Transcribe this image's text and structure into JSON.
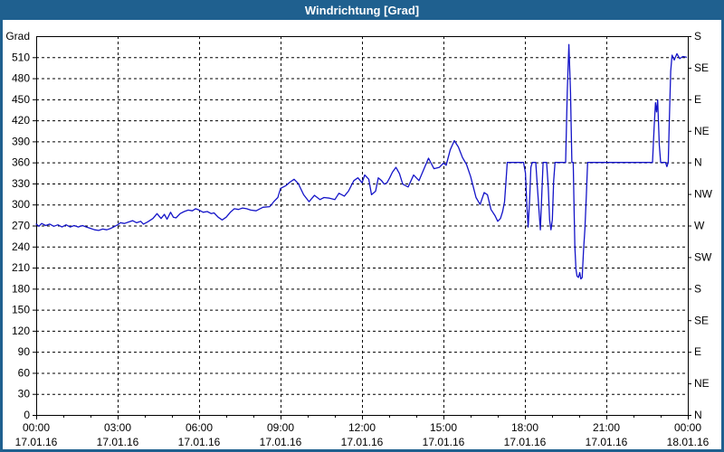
{
  "window": {
    "title": "Windrichtung [Grad]"
  },
  "colors": {
    "frame_blue": "#1f608f",
    "plot_bg": "#ffffff",
    "grid": "#000000",
    "axis": "#000000",
    "line": "#1414c8",
    "label_text": "#000000",
    "title_text": "#ffffff"
  },
  "chart_data": {
    "type": "line",
    "title": "Windrichtung [Grad]",
    "y_axis_unit_label": "Grad",
    "ylim": [
      0,
      540
    ],
    "y_tick_step": 30,
    "y_tick_labels": [
      "0",
      "30",
      "60",
      "90",
      "120",
      "150",
      "180",
      "210",
      "240",
      "270",
      "300",
      "330",
      "360",
      "390",
      "420",
      "450",
      "480",
      "510"
    ],
    "right_axis_labels": [
      {
        "deg": 540,
        "label": "S"
      },
      {
        "deg": 495,
        "label": "SE"
      },
      {
        "deg": 450,
        "label": "E"
      },
      {
        "deg": 405,
        "label": "NE"
      },
      {
        "deg": 360,
        "label": "N"
      },
      {
        "deg": 315,
        "label": "NW"
      },
      {
        "deg": 270,
        "label": "W"
      },
      {
        "deg": 225,
        "label": "SW"
      },
      {
        "deg": 180,
        "label": "S"
      },
      {
        "deg": 135,
        "label": "SE"
      },
      {
        "deg": 90,
        "label": "E"
      },
      {
        "deg": 45,
        "label": "NE"
      },
      {
        "deg": 0,
        "label": "N"
      }
    ],
    "xlim_hours": [
      0,
      24
    ],
    "x_major_step_hours": 3,
    "x_minor_step_hours": 1,
    "x_ticks": [
      {
        "hour": 0,
        "time": "00:00",
        "date": "17.01.16"
      },
      {
        "hour": 3,
        "time": "03:00",
        "date": "17.01.16"
      },
      {
        "hour": 6,
        "time": "06:00",
        "date": "17.01.16"
      },
      {
        "hour": 9,
        "time": "09:00",
        "date": "17.01.16"
      },
      {
        "hour": 12,
        "time": "12:00",
        "date": "17.01.16"
      },
      {
        "hour": 15,
        "time": "15:00",
        "date": "17.01.16"
      },
      {
        "hour": 18,
        "time": "18:00",
        "date": "17.01.16"
      },
      {
        "hour": 21,
        "time": "21:00",
        "date": "17.01.16"
      },
      {
        "hour": 24,
        "time": "00:00",
        "date": "18.01.16"
      }
    ],
    "grid": "dashed",
    "legend": "none",
    "series": [
      {
        "name": "Windrichtung",
        "color": "#1414c8",
        "points": [
          [
            0,
            272
          ],
          [
            0.1,
            269
          ],
          [
            0.2,
            273
          ],
          [
            0.35,
            270
          ],
          [
            0.5,
            272
          ],
          [
            0.65,
            269
          ],
          [
            0.8,
            271
          ],
          [
            0.95,
            268
          ],
          [
            1.1,
            271
          ],
          [
            1.25,
            268
          ],
          [
            1.4,
            270
          ],
          [
            1.55,
            268
          ],
          [
            1.7,
            270
          ],
          [
            1.85,
            268
          ],
          [
            2,
            266
          ],
          [
            2.15,
            264
          ],
          [
            2.3,
            263
          ],
          [
            2.45,
            265
          ],
          [
            2.6,
            264
          ],
          [
            2.75,
            266
          ],
          [
            2.9,
            269
          ],
          [
            3,
            271
          ],
          [
            3.1,
            274
          ],
          [
            3.25,
            273
          ],
          [
            3.4,
            275
          ],
          [
            3.55,
            277
          ],
          [
            3.7,
            274
          ],
          [
            3.85,
            276
          ],
          [
            3.95,
            272
          ],
          [
            4.1,
            275
          ],
          [
            4.3,
            280
          ],
          [
            4.45,
            287
          ],
          [
            4.6,
            280
          ],
          [
            4.72,
            286
          ],
          [
            4.82,
            279
          ],
          [
            4.95,
            289
          ],
          [
            5.05,
            282
          ],
          [
            5.15,
            281
          ],
          [
            5.3,
            287
          ],
          [
            5.45,
            290
          ],
          [
            5.6,
            292
          ],
          [
            5.75,
            291
          ],
          [
            5.87,
            294
          ],
          [
            6,
            292
          ],
          [
            6.15,
            289
          ],
          [
            6.3,
            290
          ],
          [
            6.45,
            287
          ],
          [
            6.55,
            288
          ],
          [
            6.7,
            282
          ],
          [
            6.85,
            278
          ],
          [
            7,
            282
          ],
          [
            7.15,
            289
          ],
          [
            7.3,
            294
          ],
          [
            7.45,
            293
          ],
          [
            7.6,
            295
          ],
          [
            7.75,
            294
          ],
          [
            7.9,
            292
          ],
          [
            8.1,
            291
          ],
          [
            8.35,
            296
          ],
          [
            8.6,
            297
          ],
          [
            8.75,
            304
          ],
          [
            8.9,
            310
          ],
          [
            9,
            323
          ],
          [
            9.2,
            327
          ],
          [
            9.35,
            332
          ],
          [
            9.5,
            336
          ],
          [
            9.65,
            330
          ],
          [
            9.85,
            314
          ],
          [
            10.05,
            304
          ],
          [
            10.25,
            313
          ],
          [
            10.45,
            307
          ],
          [
            10.6,
            310
          ],
          [
            10.8,
            309
          ],
          [
            11,
            307
          ],
          [
            11.15,
            316
          ],
          [
            11.35,
            312
          ],
          [
            11.5,
            319
          ],
          [
            11.7,
            334
          ],
          [
            11.85,
            338
          ],
          [
            12,
            331
          ],
          [
            12.1,
            342
          ],
          [
            12.25,
            336
          ],
          [
            12.35,
            314
          ],
          [
            12.5,
            319
          ],
          [
            12.6,
            338
          ],
          [
            12.72,
            334
          ],
          [
            12.82,
            329
          ],
          [
            12.92,
            331
          ],
          [
            13.02,
            338
          ],
          [
            13.12,
            346
          ],
          [
            13.25,
            353
          ],
          [
            13.38,
            344
          ],
          [
            13.5,
            329
          ],
          [
            13.7,
            325
          ],
          [
            13.9,
            342
          ],
          [
            14.1,
            334
          ],
          [
            14.45,
            366
          ],
          [
            14.65,
            351
          ],
          [
            14.85,
            353
          ],
          [
            15,
            359
          ],
          [
            15.1,
            356
          ],
          [
            15.25,
            378
          ],
          [
            15.4,
            391
          ],
          [
            15.55,
            382
          ],
          [
            15.7,
            367
          ],
          [
            15.85,
            357
          ],
          [
            16,
            340
          ],
          [
            16.1,
            325
          ],
          [
            16.2,
            310
          ],
          [
            16.35,
            300
          ],
          [
            16.5,
            317
          ],
          [
            16.62,
            314
          ],
          [
            16.75,
            293
          ],
          [
            16.9,
            284
          ],
          [
            17,
            276
          ],
          [
            17.1,
            280
          ],
          [
            17.18,
            290
          ],
          [
            17.25,
            304
          ],
          [
            17.3,
            331
          ],
          [
            17.35,
            360
          ],
          [
            17.95,
            360
          ],
          [
            18.02,
            345
          ],
          [
            18.07,
            300
          ],
          [
            18.12,
            268
          ],
          [
            18.18,
            312
          ],
          [
            18.22,
            353
          ],
          [
            18.27,
            360
          ],
          [
            18.4,
            360
          ],
          [
            18.46,
            325
          ],
          [
            18.52,
            291
          ],
          [
            18.57,
            264
          ],
          [
            18.62,
            312
          ],
          [
            18.67,
            360
          ],
          [
            18.8,
            360
          ],
          [
            18.86,
            325
          ],
          [
            18.91,
            278
          ],
          [
            18.96,
            264
          ],
          [
            19.01,
            278
          ],
          [
            19.06,
            334
          ],
          [
            19.11,
            360
          ],
          [
            19.5,
            360
          ],
          [
            19.56,
            460
          ],
          [
            19.62,
            528
          ],
          [
            19.68,
            460
          ],
          [
            19.73,
            360
          ],
          [
            19.78,
            360
          ],
          [
            19.81,
            297
          ],
          [
            19.84,
            240
          ],
          [
            19.88,
            208
          ],
          [
            19.92,
            198
          ],
          [
            19.97,
            196
          ],
          [
            20.02,
            203
          ],
          [
            20.06,
            194
          ],
          [
            20.11,
            196
          ],
          [
            20.16,
            235
          ],
          [
            20.21,
            265
          ],
          [
            20.26,
            310
          ],
          [
            20.31,
            360
          ],
          [
            22.7,
            360
          ],
          [
            22.76,
            410
          ],
          [
            22.81,
            445
          ],
          [
            22.85,
            432
          ],
          [
            22.89,
            449
          ],
          [
            22.95,
            385
          ],
          [
            23,
            360
          ],
          [
            23.18,
            360
          ],
          [
            23.23,
            354
          ],
          [
            23.28,
            360
          ],
          [
            23.32,
            420
          ],
          [
            23.37,
            490
          ],
          [
            23.42,
            513
          ],
          [
            23.5,
            506
          ],
          [
            23.6,
            515
          ],
          [
            23.7,
            508
          ],
          [
            23.82,
            511
          ],
          [
            23.95,
            510
          ]
        ]
      }
    ]
  }
}
